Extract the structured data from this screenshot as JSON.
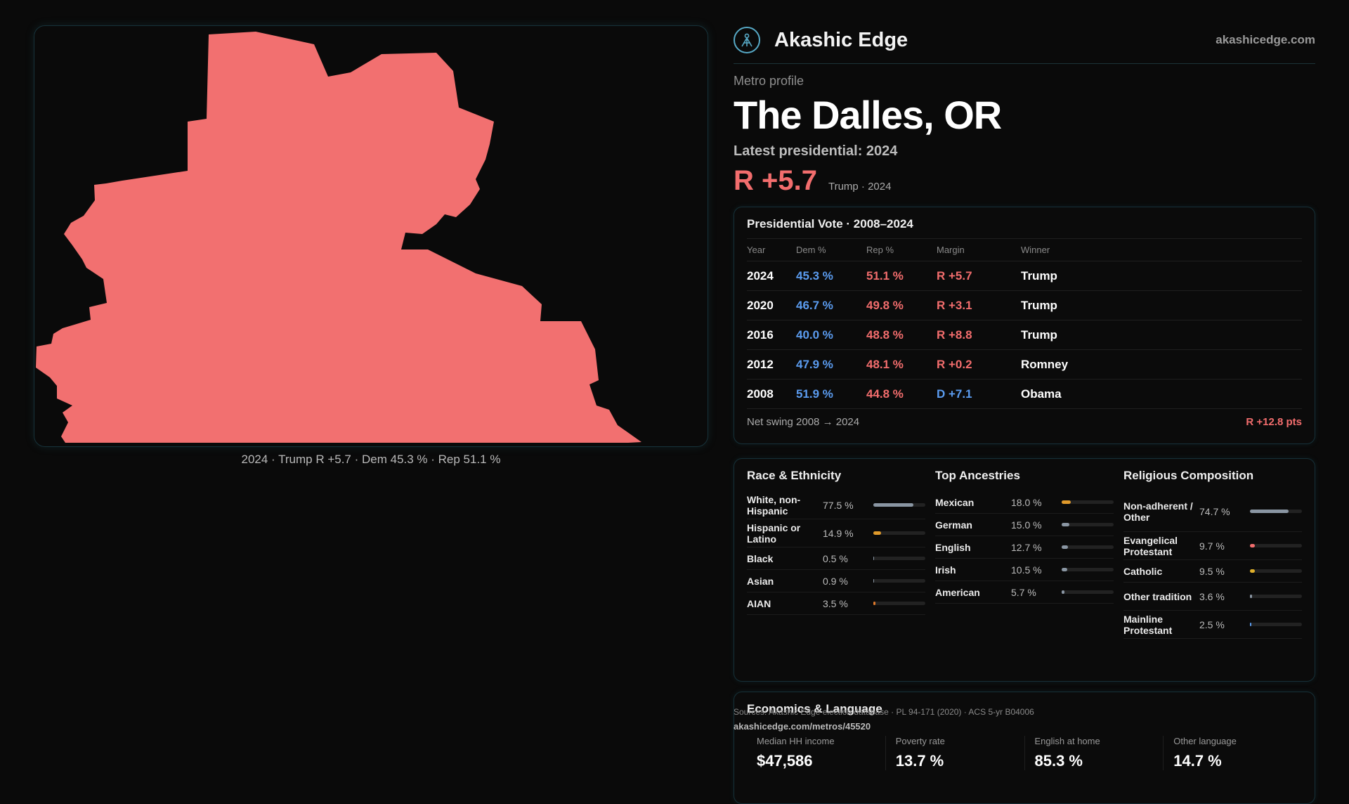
{
  "brand": {
    "name": "Akashic Edge",
    "url": "akashicedge.com",
    "logo_icon": "akashic-logo-icon",
    "accent": "#57a9c6"
  },
  "profile": {
    "eyebrow": "Metro profile",
    "title": "The Dalles, OR",
    "latest_label": "Latest presidential: 2024",
    "margin_value": "R +5.7",
    "margin_sub": "Trump · 2024"
  },
  "map": {
    "fill_color": "#f27070",
    "caption": "2024 · Trump R +5.7 · Dem 45.3 % · Rep 51.1 %"
  },
  "vote": {
    "title": "Presidential Vote · 2008–2024",
    "headers": [
      "Year",
      "Dem %",
      "Rep %",
      "Margin",
      "Winner"
    ],
    "rows": [
      {
        "year": "2024",
        "dem": "45.3 %",
        "rep": "51.1 %",
        "margin": "R +5.7",
        "winner": "Trump",
        "party": "R"
      },
      {
        "year": "2020",
        "dem": "46.7 %",
        "rep": "49.8 %",
        "margin": "R +3.1",
        "winner": "Trump",
        "party": "R"
      },
      {
        "year": "2016",
        "dem": "40.0 %",
        "rep": "48.8 %",
        "margin": "R +8.8",
        "winner": "Trump",
        "party": "R"
      },
      {
        "year": "2012",
        "dem": "47.9 %",
        "rep": "48.1 %",
        "margin": "R +0.2",
        "winner": "Romney",
        "party": "R"
      },
      {
        "year": "2008",
        "dem": "51.9 %",
        "rep": "44.8 %",
        "margin": "D +7.1",
        "winner": "Obama",
        "party": "D"
      }
    ],
    "net_label": "Net swing 2008 → 2024",
    "net_value": "R +12.8 pts"
  },
  "race": {
    "title": "Race & Ethnicity",
    "rows": [
      {
        "label": "White, non-Hispanic",
        "value": "77.5 %",
        "pct": 77.5,
        "color": "#8a96a3"
      },
      {
        "label": "Hispanic or Latino",
        "value": "14.9 %",
        "pct": 14.9,
        "color": "#e09a2b"
      },
      {
        "label": "Black",
        "value": "0.5 %",
        "pct": 0.5,
        "color": "#8a96a3"
      },
      {
        "label": "Asian",
        "value": "0.9 %",
        "pct": 0.9,
        "color": "#8a96a3"
      },
      {
        "label": "AIAN",
        "value": "3.5 %",
        "pct": 3.5,
        "color": "#e07a2b"
      }
    ]
  },
  "ancestry": {
    "title": "Top Ancestries",
    "rows": [
      {
        "label": "Mexican",
        "value": "18.0 %",
        "pct": 18.0,
        "color": "#e09a2b"
      },
      {
        "label": "German",
        "value": "15.0 %",
        "pct": 15.0,
        "color": "#8a96a3"
      },
      {
        "label": "English",
        "value": "12.7 %",
        "pct": 12.7,
        "color": "#8a96a3"
      },
      {
        "label": "Irish",
        "value": "10.5 %",
        "pct": 10.5,
        "color": "#8a96a3"
      },
      {
        "label": "American",
        "value": "5.7 %",
        "pct": 5.7,
        "color": "#8a96a3"
      }
    ]
  },
  "religion": {
    "title": "Religious Composition",
    "rows": [
      {
        "label": "Non-adherent / Other",
        "value": "74.7 %",
        "pct": 74.7,
        "color": "#8a96a3"
      },
      {
        "label": "Evangelical Protestant",
        "value": "9.7 %",
        "pct": 9.7,
        "color": "#f26d6d"
      },
      {
        "label": "Catholic",
        "value": "9.5 %",
        "pct": 9.5,
        "color": "#e0b02b"
      },
      {
        "label": "Other tradition",
        "value": "3.6 %",
        "pct": 3.6,
        "color": "#8a96a3"
      },
      {
        "label": "Mainline Protestant",
        "value": "2.5 %",
        "pct": 2.5,
        "color": "#5b9cf0"
      }
    ]
  },
  "econ": {
    "title": "Economics & Language",
    "cells": [
      {
        "label": "Median HH income",
        "value": "$47,586"
      },
      {
        "label": "Poverty rate",
        "value": "13.7 %"
      },
      {
        "label": "English at home",
        "value": "85.3 %"
      },
      {
        "label": "Other language",
        "value": "14.7 %"
      }
    ]
  },
  "footer": {
    "sources": "Sources: Akashic Edge election database · PL 94-171 (2020) · ACS 5-yr B04006",
    "permalink": "akashicedge.com/metros/45520"
  }
}
